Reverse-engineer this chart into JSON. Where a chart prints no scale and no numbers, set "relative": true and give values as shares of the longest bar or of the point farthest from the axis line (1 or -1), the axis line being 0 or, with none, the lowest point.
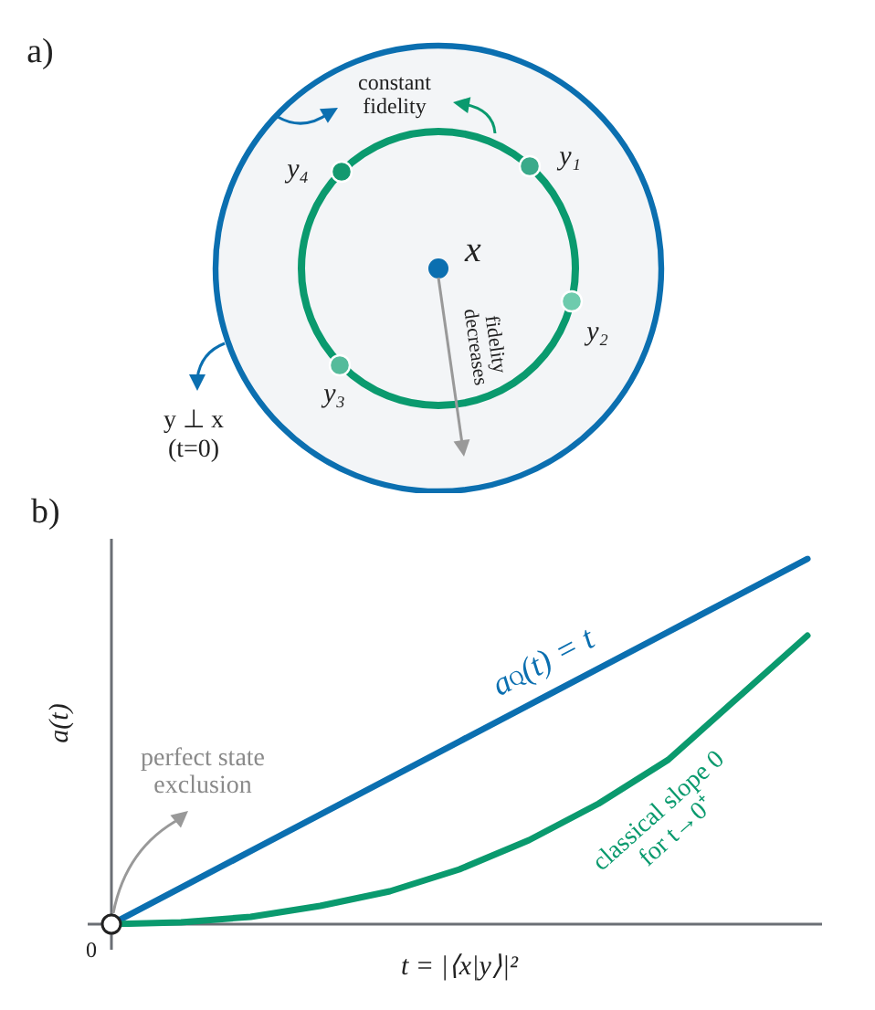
{
  "chart_data": [
    {
      "type": "other",
      "title": "a)",
      "annotations": [
        "constant\nfidelity",
        "y₁",
        "y₂",
        "y₃",
        "y₄",
        "x",
        "fidelity\ndecreases",
        "y ⊥ x\n(t=0)"
      ]
    },
    {
      "type": "line",
      "title": "b)",
      "xlabel": "t = |⟨x|y⟩|²",
      "ylabel": "a(t)",
      "relative": true,
      "legend": false,
      "marker": "none",
      "categories": [
        null,
        null,
        null,
        null,
        null,
        null,
        null,
        null,
        null,
        null,
        null
      ],
      "series": [
        {
          "name": "a$_{Q}$(t) = t",
          "color": "#0b6fb0",
          "values": [
            0,
            0.1,
            0.2,
            0.3,
            0.4,
            0.5,
            0.6,
            0.7,
            0.8,
            0.9,
            1
          ]
        },
        {
          "name": "classical slope 0\nfor t→0⁺",
          "color": "#0a9a6e",
          "values": [
            0,
            0.005,
            0.02,
            0.05,
            0.09,
            0.15,
            0.23,
            0.33,
            0.45,
            0.62,
            0.79
          ]
        }
      ],
      "annotations": [
        "perfect state\nexclusion",
        "0"
      ]
    }
  ]
}
